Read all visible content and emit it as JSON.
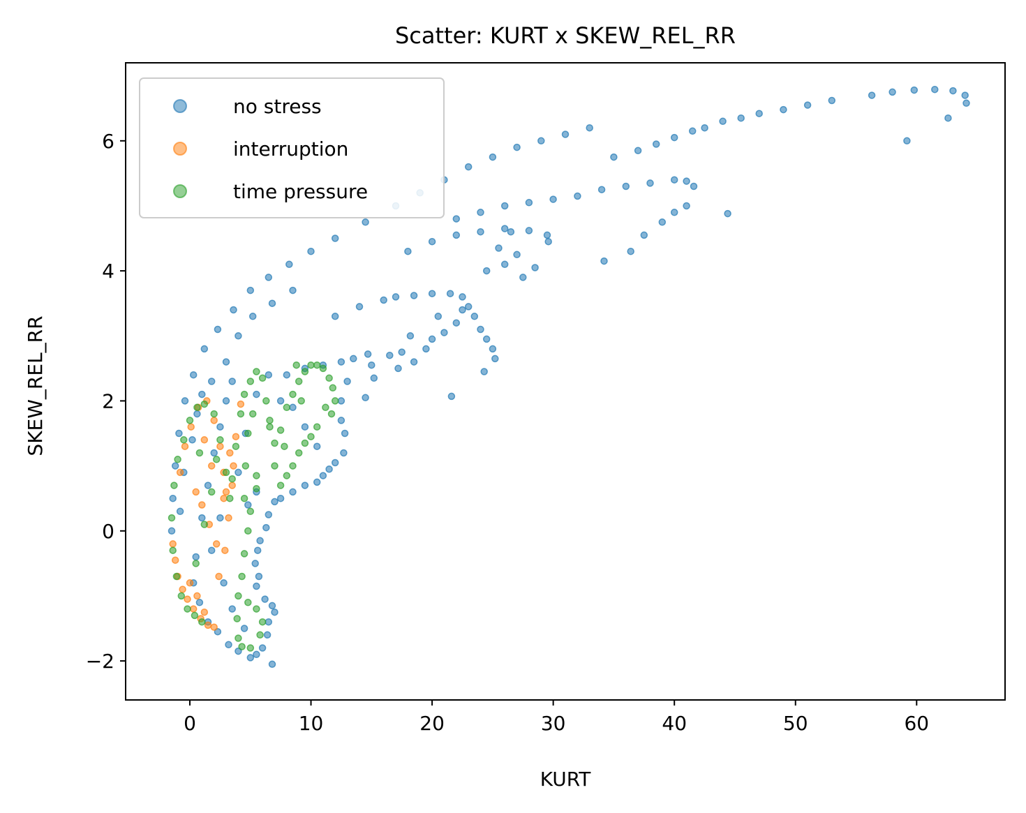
{
  "chart_data": {
    "type": "scatter",
    "title": "Scatter: KURT x SKEW_REL_RR",
    "xlabel": "KURT",
    "ylabel": "SKEW_REL_RR",
    "xlim": [
      -5.3,
      67.3
    ],
    "ylim": [
      -2.6,
      7.2
    ],
    "xticks": [
      0,
      10,
      20,
      30,
      40,
      50,
      60
    ],
    "yticks": [
      -2,
      0,
      2,
      4,
      6
    ],
    "xtick_labels": [
      "0",
      "10",
      "20",
      "30",
      "40",
      "50",
      "60"
    ],
    "ytick_labels": [
      "−2",
      "0",
      "2",
      "4",
      "6"
    ],
    "grid": false,
    "legend": "upper left",
    "series": [
      {
        "name": "no stress",
        "color": "#1f77b4",
        "points": [
          [
            -1.5,
            0.0
          ],
          [
            -1.4,
            0.5
          ],
          [
            -1.2,
            1.0
          ],
          [
            -0.9,
            1.5
          ],
          [
            -0.4,
            2.0
          ],
          [
            0.3,
            2.4
          ],
          [
            1.2,
            2.8
          ],
          [
            2.3,
            3.1
          ],
          [
            3.6,
            3.4
          ],
          [
            5.0,
            3.7
          ],
          [
            6.5,
            3.9
          ],
          [
            8.2,
            4.1
          ],
          [
            10.0,
            4.3
          ],
          [
            12.0,
            4.5
          ],
          [
            14.5,
            4.75
          ],
          [
            17.0,
            5.0
          ],
          [
            19.0,
            5.2
          ],
          [
            21.0,
            5.4
          ],
          [
            23.0,
            5.6
          ],
          [
            25.0,
            5.75
          ],
          [
            27.0,
            5.9
          ],
          [
            29.0,
            6.0
          ],
          [
            31.0,
            6.1
          ],
          [
            33.0,
            6.2
          ],
          [
            35.0,
            5.75
          ],
          [
            37.0,
            5.85
          ],
          [
            38.5,
            5.95
          ],
          [
            40.0,
            6.05
          ],
          [
            41.5,
            6.15
          ],
          [
            42.5,
            6.2
          ],
          [
            44.0,
            6.3
          ],
          [
            45.5,
            6.35
          ],
          [
            47.0,
            6.42
          ],
          [
            49.0,
            6.48
          ],
          [
            51.0,
            6.55
          ],
          [
            53.0,
            6.62
          ],
          [
            56.3,
            6.7
          ],
          [
            58.0,
            6.75
          ],
          [
            59.8,
            6.78
          ],
          [
            61.5,
            6.79
          ],
          [
            63.0,
            6.77
          ],
          [
            64.0,
            6.7
          ],
          [
            64.1,
            6.58
          ],
          [
            62.6,
            6.35
          ],
          [
            59.2,
            6.0
          ],
          [
            22.0,
            4.8
          ],
          [
            24.0,
            4.9
          ],
          [
            26.0,
            5.0
          ],
          [
            28.0,
            5.05
          ],
          [
            30.0,
            5.1
          ],
          [
            32.0,
            5.15
          ],
          [
            34.0,
            5.25
          ],
          [
            36.0,
            5.3
          ],
          [
            38.0,
            5.35
          ],
          [
            40.0,
            5.4
          ],
          [
            41.0,
            5.38
          ],
          [
            41.6,
            5.3
          ],
          [
            41.0,
            5.0
          ],
          [
            40.0,
            4.9
          ],
          [
            39.0,
            4.75
          ],
          [
            37.5,
            4.55
          ],
          [
            36.4,
            4.3
          ],
          [
            34.2,
            4.15
          ],
          [
            44.4,
            4.88
          ],
          [
            18.0,
            4.3
          ],
          [
            20.0,
            4.45
          ],
          [
            22.0,
            4.55
          ],
          [
            24.0,
            4.6
          ],
          [
            26.0,
            4.65
          ],
          [
            28.0,
            4.62
          ],
          [
            29.5,
            4.55
          ],
          [
            29.6,
            4.45
          ],
          [
            27.0,
            4.25
          ],
          [
            26.0,
            4.1
          ],
          [
            24.5,
            4.0
          ],
          [
            27.5,
            3.9
          ],
          [
            28.5,
            4.05
          ],
          [
            26.5,
            4.6
          ],
          [
            25.5,
            4.35
          ],
          [
            12.0,
            3.3
          ],
          [
            14.0,
            3.45
          ],
          [
            16.0,
            3.55
          ],
          [
            17.0,
            3.6
          ],
          [
            18.5,
            3.62
          ],
          [
            20.0,
            3.65
          ],
          [
            21.5,
            3.65
          ],
          [
            22.5,
            3.6
          ],
          [
            23.0,
            3.45
          ],
          [
            23.5,
            3.3
          ],
          [
            24.0,
            3.1
          ],
          [
            24.5,
            2.95
          ],
          [
            25.0,
            2.8
          ],
          [
            25.2,
            2.65
          ],
          [
            24.3,
            2.45
          ],
          [
            22.5,
            3.4
          ],
          [
            22.0,
            3.2
          ],
          [
            21.0,
            3.05
          ],
          [
            20.0,
            2.95
          ],
          [
            19.5,
            2.8
          ],
          [
            18.5,
            2.6
          ],
          [
            17.5,
            2.75
          ],
          [
            17.2,
            2.5
          ],
          [
            16.5,
            2.7
          ],
          [
            15.2,
            2.35
          ],
          [
            15.0,
            2.55
          ],
          [
            14.5,
            2.05
          ],
          [
            21.6,
            2.07
          ],
          [
            18.2,
            3.0
          ],
          [
            20.5,
            3.3
          ],
          [
            8.0,
            2.4
          ],
          [
            9.5,
            2.5
          ],
          [
            11.0,
            2.55
          ],
          [
            12.5,
            2.6
          ],
          [
            13.5,
            2.65
          ],
          [
            14.7,
            2.72
          ],
          [
            13.0,
            2.3
          ],
          [
            12.5,
            2.0
          ],
          [
            12.5,
            1.7
          ],
          [
            12.8,
            1.5
          ],
          [
            12.7,
            1.2
          ],
          [
            12.0,
            1.05
          ],
          [
            11.5,
            0.95
          ],
          [
            11.0,
            0.85
          ],
          [
            10.5,
            0.75
          ],
          [
            9.5,
            0.7
          ],
          [
            8.5,
            0.6
          ],
          [
            7.5,
            0.5
          ],
          [
            7.0,
            0.45
          ],
          [
            6.5,
            0.25
          ],
          [
            6.3,
            0.05
          ],
          [
            5.8,
            -0.15
          ],
          [
            5.6,
            -0.3
          ],
          [
            5.4,
            -0.5
          ],
          [
            5.7,
            -0.7
          ],
          [
            5.5,
            -0.85
          ],
          [
            6.2,
            -1.05
          ],
          [
            6.8,
            -1.15
          ],
          [
            7.0,
            -1.25
          ],
          [
            6.5,
            -1.4
          ],
          [
            6.4,
            -1.6
          ],
          [
            6.8,
            -2.05
          ],
          [
            6.0,
            -1.8
          ],
          [
            5.5,
            -1.9
          ],
          [
            -0.8,
            0.3
          ],
          [
            -0.5,
            0.9
          ],
          [
            0.2,
            1.4
          ],
          [
            0.6,
            1.8
          ],
          [
            1.0,
            2.1
          ],
          [
            1.8,
            2.3
          ],
          [
            0.5,
            -0.4
          ],
          [
            0.3,
            -0.8
          ],
          [
            0.8,
            -1.1
          ],
          [
            1.5,
            -1.4
          ],
          [
            2.3,
            -1.55
          ],
          [
            3.2,
            -1.75
          ],
          [
            4.0,
            -1.85
          ],
          [
            5.0,
            -1.95
          ],
          [
            1.0,
            0.2
          ],
          [
            1.5,
            0.7
          ],
          [
            2.0,
            1.2
          ],
          [
            2.5,
            1.6
          ],
          [
            3.0,
            2.0
          ],
          [
            3.5,
            2.3
          ],
          [
            2.8,
            -0.8
          ],
          [
            3.5,
            -1.2
          ],
          [
            4.5,
            -1.5
          ],
          [
            1.8,
            -0.3
          ],
          [
            2.5,
            0.2
          ],
          [
            4.0,
            0.9
          ],
          [
            4.6,
            1.5
          ],
          [
            5.5,
            2.1
          ],
          [
            6.5,
            2.4
          ],
          [
            7.5,
            2.0
          ],
          [
            8.5,
            1.9
          ],
          [
            9.5,
            1.6
          ],
          [
            10.5,
            1.3
          ],
          [
            4.8,
            0.4
          ],
          [
            5.5,
            0.6
          ],
          [
            3.0,
            2.6
          ],
          [
            4.0,
            3.0
          ],
          [
            5.2,
            3.3
          ],
          [
            6.8,
            3.5
          ],
          [
            8.5,
            3.7
          ]
        ]
      },
      {
        "name": "interruption",
        "color": "#ff7f0e",
        "points": [
          [
            -1.4,
            -0.2
          ],
          [
            -1.2,
            -0.45
          ],
          [
            -1.0,
            -0.7
          ],
          [
            -0.6,
            -0.9
          ],
          [
            -0.2,
            -1.05
          ],
          [
            0.3,
            -1.2
          ],
          [
            0.9,
            -1.35
          ],
          [
            1.5,
            -1.45
          ],
          [
            2.0,
            -1.48
          ],
          [
            1.2,
            -1.25
          ],
          [
            0.6,
            -1.0
          ],
          [
            0.0,
            -0.8
          ],
          [
            -0.8,
            0.9
          ],
          [
            -0.4,
            1.3
          ],
          [
            0.1,
            1.6
          ],
          [
            0.7,
            1.9
          ],
          [
            1.4,
            2.0
          ],
          [
            2.0,
            1.7
          ],
          [
            2.5,
            1.3
          ],
          [
            2.8,
            0.9
          ],
          [
            3.0,
            0.6
          ],
          [
            3.3,
            1.2
          ],
          [
            3.8,
            1.45
          ],
          [
            4.2,
            1.95
          ],
          [
            3.6,
            1.0
          ],
          [
            3.2,
            0.2
          ],
          [
            2.9,
            -0.3
          ],
          [
            2.4,
            -0.7
          ],
          [
            2.8,
            0.5
          ],
          [
            3.5,
            0.7
          ],
          [
            1.0,
            0.4
          ],
          [
            1.6,
            0.1
          ],
          [
            2.2,
            -0.2
          ],
          [
            1.8,
            1.0
          ],
          [
            0.5,
            0.6
          ],
          [
            1.2,
            1.4
          ]
        ]
      },
      {
        "name": "time pressure",
        "color": "#2ca02c",
        "points": [
          [
            -1.5,
            0.2
          ],
          [
            -1.3,
            0.7
          ],
          [
            -1.0,
            1.1
          ],
          [
            -0.5,
            1.4
          ],
          [
            0.0,
            1.7
          ],
          [
            0.6,
            1.9
          ],
          [
            1.2,
            1.95
          ],
          [
            2.0,
            1.8
          ],
          [
            2.5,
            1.4
          ],
          [
            3.0,
            0.9
          ],
          [
            3.3,
            0.5
          ],
          [
            -1.4,
            -0.3
          ],
          [
            -1.1,
            -0.7
          ],
          [
            -0.7,
            -1.0
          ],
          [
            -0.2,
            -1.2
          ],
          [
            0.4,
            -1.3
          ],
          [
            1.0,
            -1.4
          ],
          [
            0.5,
            -0.5
          ],
          [
            1.2,
            0.1
          ],
          [
            1.8,
            0.6
          ],
          [
            2.2,
            1.1
          ],
          [
            0.8,
            1.2
          ],
          [
            3.5,
            0.8
          ],
          [
            3.8,
            1.3
          ],
          [
            4.2,
            1.8
          ],
          [
            4.5,
            2.1
          ],
          [
            5.0,
            2.3
          ],
          [
            5.5,
            2.45
          ],
          [
            6.0,
            2.35
          ],
          [
            6.3,
            2.0
          ],
          [
            6.6,
            1.6
          ],
          [
            7.0,
            1.35
          ],
          [
            7.5,
            1.55
          ],
          [
            8.0,
            1.9
          ],
          [
            8.5,
            2.1
          ],
          [
            9.0,
            2.3
          ],
          [
            9.5,
            2.45
          ],
          [
            10.0,
            2.55
          ],
          [
            10.5,
            2.55
          ],
          [
            11.0,
            2.5
          ],
          [
            11.5,
            2.35
          ],
          [
            11.8,
            2.2
          ],
          [
            12.0,
            2.0
          ],
          [
            11.7,
            1.8
          ],
          [
            11.2,
            1.9
          ],
          [
            10.5,
            1.6
          ],
          [
            10.0,
            1.45
          ],
          [
            9.5,
            1.35
          ],
          [
            9.0,
            1.2
          ],
          [
            8.5,
            1.0
          ],
          [
            8.0,
            0.85
          ],
          [
            7.5,
            0.7
          ],
          [
            7.0,
            1.0
          ],
          [
            6.6,
            1.7
          ],
          [
            5.5,
            0.85
          ],
          [
            5.5,
            0.65
          ],
          [
            5.0,
            0.3
          ],
          [
            4.8,
            0.0
          ],
          [
            4.5,
            -0.35
          ],
          [
            4.3,
            -0.7
          ],
          [
            4.0,
            -1.0
          ],
          [
            3.9,
            -1.35
          ],
          [
            4.0,
            -1.65
          ],
          [
            4.3,
            -1.78
          ],
          [
            5.0,
            -1.8
          ],
          [
            5.8,
            -1.6
          ],
          [
            6.0,
            -1.4
          ],
          [
            5.5,
            -1.2
          ],
          [
            4.8,
            -1.1
          ],
          [
            4.5,
            0.5
          ],
          [
            4.6,
            1.0
          ],
          [
            4.8,
            1.5
          ],
          [
            5.2,
            1.8
          ],
          [
            8.8,
            2.55
          ],
          [
            9.2,
            2.0
          ],
          [
            7.8,
            1.3
          ]
        ]
      }
    ]
  }
}
